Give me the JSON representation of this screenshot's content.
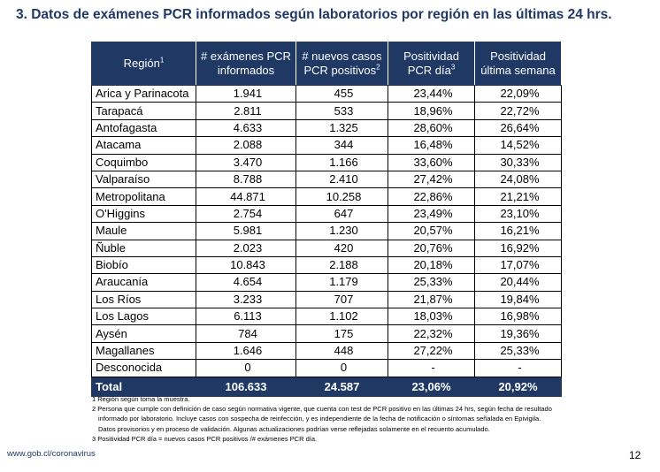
{
  "title": "3.  Datos de exámenes PCR informados según laboratorios por región en las últimas 24 hrs.",
  "table": {
    "headers": {
      "region": "Región",
      "region_sup": "1",
      "informados_l1": "# exámenes PCR",
      "informados_l2": "informados",
      "nuevos_l1": "# nuevos casos",
      "nuevos_l2": "PCR positivos",
      "nuevos_sup": "2",
      "pos_dia_l1": "Positividad",
      "pos_dia_l2": "PCR día",
      "pos_dia_sup": "3",
      "pos_sem_l1": "Positividad",
      "pos_sem_l2": "última semana"
    },
    "rows": [
      [
        "Arica y Parinacota",
        "1.941",
        "455",
        "23,44%",
        "22,09%"
      ],
      [
        "Tarapacá",
        "2.811",
        "533",
        "18,96%",
        "22,72%"
      ],
      [
        "Antofagasta",
        "4.633",
        "1.325",
        "28,60%",
        "26,64%"
      ],
      [
        "Atacama",
        "2.088",
        "344",
        "16,48%",
        "14,52%"
      ],
      [
        "Coquimbo",
        "3.470",
        "1.166",
        "33,60%",
        "30,33%"
      ],
      [
        "Valparaíso",
        "8.788",
        "2.410",
        "27,42%",
        "24,08%"
      ],
      [
        "Metropolitana",
        "44.871",
        "10.258",
        "22,86%",
        "21,21%"
      ],
      [
        "O'Higgins",
        "2.754",
        "647",
        "23,49%",
        "23,10%"
      ],
      [
        "Maule",
        "5.981",
        "1.230",
        "20,57%",
        "16,21%"
      ],
      [
        "Ñuble",
        "2.023",
        "420",
        "20,76%",
        "16,92%"
      ],
      [
        "Biobío",
        "10.843",
        "2.188",
        "20,18%",
        "17,07%"
      ],
      [
        "Araucanía",
        "4.654",
        "1.179",
        "25,33%",
        "20,44%"
      ],
      [
        "Los Ríos",
        "3.233",
        "707",
        "21,87%",
        "19,84%"
      ],
      [
        "Los Lagos",
        "6.113",
        "1.102",
        "18,03%",
        "16,98%"
      ],
      [
        "Aysén",
        "784",
        "175",
        "22,32%",
        "19,36%"
      ],
      [
        "Magallanes",
        "1.646",
        "448",
        "27,22%",
        "25,33%"
      ],
      [
        "Desconocida",
        "0",
        "0",
        "-",
        "-"
      ]
    ],
    "total": [
      "Total",
      "106.633",
      "24.587",
      "23,06%",
      "20,92%"
    ]
  },
  "notes": [
    "1 Región según toma la muestra.",
    "2 Persona que cumple con definición de caso según normativa vigente, que cuenta con test de PCR positivo en las últimas 24 hrs, según fecha de resultado",
    "informado por laboratorio. Incluye casos con sospecha de reinfección, y es independiente de la fecha de notificación o síntomas señalada en Epivigila.",
    "Datos provisorios y en proceso de validación. Algunas actualizaciones podrían verse reflejadas solamente en el recuento acumulado.",
    "3 Positividad PCR día = nuevos casos PCR positivos /# exámenes PCR día."
  ],
  "footer": {
    "link": "www.gob.cl/coronavirus",
    "page_number": "12"
  }
}
